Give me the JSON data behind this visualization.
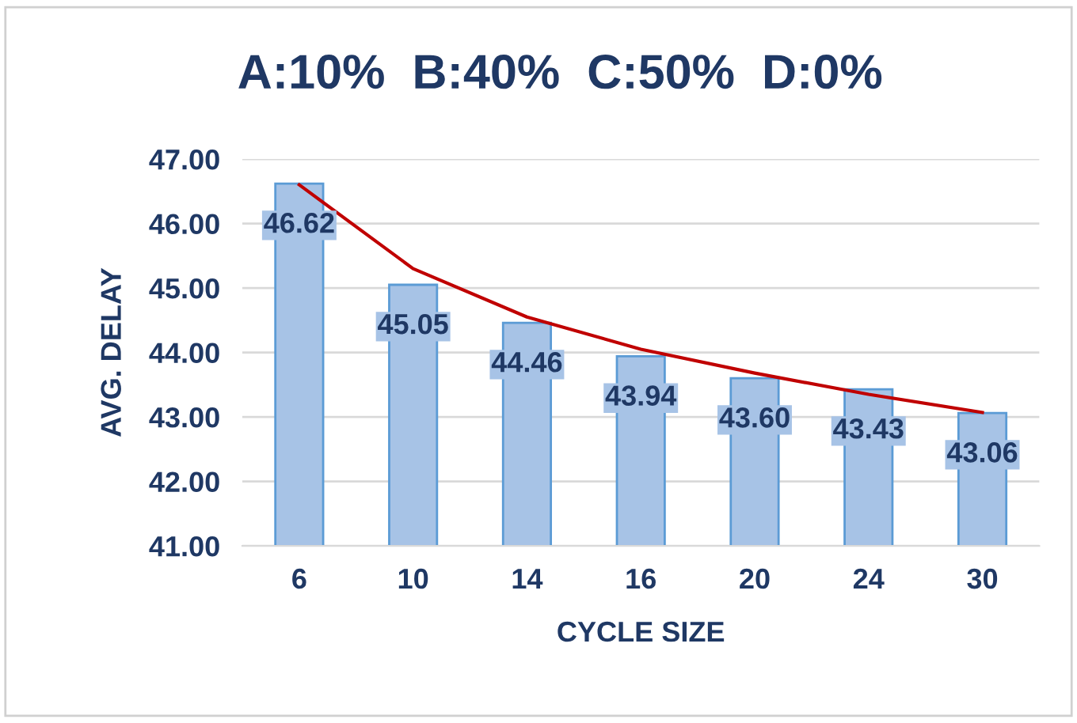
{
  "chart_data": {
    "type": "bar",
    "title": "A:10%  B:40%  C:50%  D:0%",
    "xlabel": "CYCLE SIZE",
    "ylabel": "AVG. DELAY",
    "categories": [
      "6",
      "10",
      "14",
      "16",
      "20",
      "24",
      "30"
    ],
    "series": [
      {
        "color": "#a7c3e6",
        "values": [
          46.62,
          45.05,
          44.46,
          43.94,
          43.6,
          43.43,
          43.06
        ],
        "value_labels": [
          "46.62",
          "45.05",
          "44.46",
          "43.94",
          "43.60",
          "43.43",
          "43.06"
        ]
      },
      {
        "type": "line",
        "color": "#c00000",
        "values": [
          46.6,
          45.3,
          44.55,
          44.05,
          43.68,
          43.35,
          43.07
        ]
      }
    ],
    "ylim": [
      41,
      47
    ],
    "yticks": [
      {
        "value": 41,
        "label": "41.00"
      },
      {
        "value": 42,
        "label": "42.00"
      },
      {
        "value": 43,
        "label": "43.00"
      },
      {
        "value": 44,
        "label": "44.00"
      },
      {
        "value": 45,
        "label": "45.00"
      },
      {
        "value": 46,
        "label": "46.00"
      },
      {
        "value": 47,
        "label": "47.00"
      }
    ],
    "grid": "y",
    "legend": false
  }
}
